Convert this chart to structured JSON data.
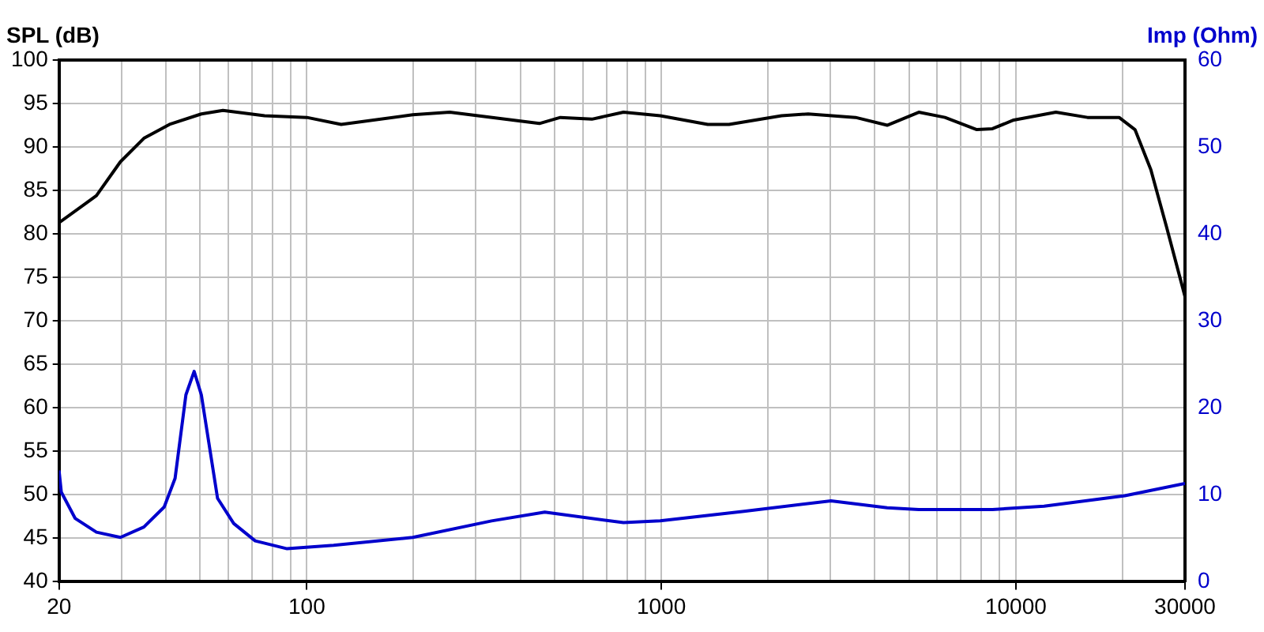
{
  "chart_data": {
    "type": "line",
    "ylabel": "SPL (dB)",
    "y2label": "Imp (Ohm)",
    "xlim": [
      20,
      30000
    ],
    "xticks": [
      20,
      {
        "value": 30,
        "label": null
      },
      {
        "value": 40,
        "label": null
      },
      {
        "value": 50,
        "label": null
      },
      {
        "value": 60,
        "label": null
      },
      {
        "value": 70,
        "label": null
      },
      {
        "value": 80,
        "label": null
      },
      {
        "value": 90,
        "label": null
      },
      100,
      {
        "value": 200,
        "label": null
      },
      {
        "value": 300,
        "label": null
      },
      {
        "value": 400,
        "label": null
      },
      {
        "value": 500,
        "label": null
      },
      {
        "value": 600,
        "label": null
      },
      {
        "value": 700,
        "label": null
      },
      {
        "value": 800,
        "label": null
      },
      {
        "value": 900,
        "label": null
      },
      1000,
      {
        "value": 2000,
        "label": null
      },
      {
        "value": 3000,
        "label": null
      },
      {
        "value": 4000,
        "label": null
      },
      {
        "value": 5000,
        "label": null
      },
      {
        "value": 6000,
        "label": null
      },
      {
        "value": 7000,
        "label": null
      },
      {
        "value": 8000,
        "label": null
      },
      {
        "value": 9000,
        "label": null
      },
      10000,
      {
        "value": 20000,
        "label": null
      },
      30000
    ],
    "ylim": [
      40,
      100
    ],
    "yticks": [
      40,
      45,
      50,
      55,
      60,
      65,
      70,
      75,
      80,
      85,
      90,
      95,
      100
    ],
    "y2lim": [
      0,
      60
    ],
    "y2ticks": [
      0,
      10,
      20,
      30,
      40,
      50,
      60
    ],
    "log": "x",
    "grid": true,
    "legend": false,
    "marker": "none",
    "line_style": "solid",
    "series": [
      {
        "color": "#000000",
        "x": [
          20,
          25.5,
          29.8,
          34.7,
          41,
          50.4,
          58,
          76,
          100,
          125,
          199,
          253,
          453,
          519,
          637,
          782,
          993,
          1352,
          1552,
          2183,
          2594,
          3530,
          4335,
          5324,
          6310,
          7760,
          8590,
          9860,
          12970,
          15920,
          19550,
          21680,
          24030,
          26610,
          30000
        ],
        "values": [
          81.3,
          84.4,
          88.3,
          91.0,
          92.6,
          93.8,
          94.2,
          93.6,
          93.4,
          92.6,
          93.7,
          94.0,
          92.7,
          93.4,
          93.2,
          94.0,
          93.6,
          92.6,
          92.6,
          93.6,
          93.8,
          93.4,
          92.5,
          94.0,
          93.4,
          92.0,
          92.1,
          93.1,
          94.0,
          93.4,
          93.4,
          92.0,
          87.4,
          80.8,
          72.8
        ]
      },
      {
        "color": "#0000cc",
        "axis": "y2",
        "x": [
          20,
          20.3,
          22.2,
          25.5,
          29.8,
          34.7,
          39.6,
          42.5,
          45.6,
          48.1,
          50.4,
          56,
          62.2,
          71.5,
          88,
          119,
          199,
          332,
          469,
          782,
          993,
          1710,
          3010,
          4335,
          5324,
          8590,
          12010,
          20300,
          30000
        ],
        "values": [
          12.8,
          10.3,
          7.3,
          5.7,
          5.1,
          6.3,
          8.6,
          11.9,
          21.5,
          24.2,
          21.5,
          9.6,
          6.7,
          4.7,
          3.8,
          4.2,
          5.1,
          7.0,
          8.0,
          6.8,
          7.0,
          8.1,
          9.3,
          8.5,
          8.3,
          8.3,
          8.7,
          9.9,
          11.3
        ]
      }
    ]
  }
}
